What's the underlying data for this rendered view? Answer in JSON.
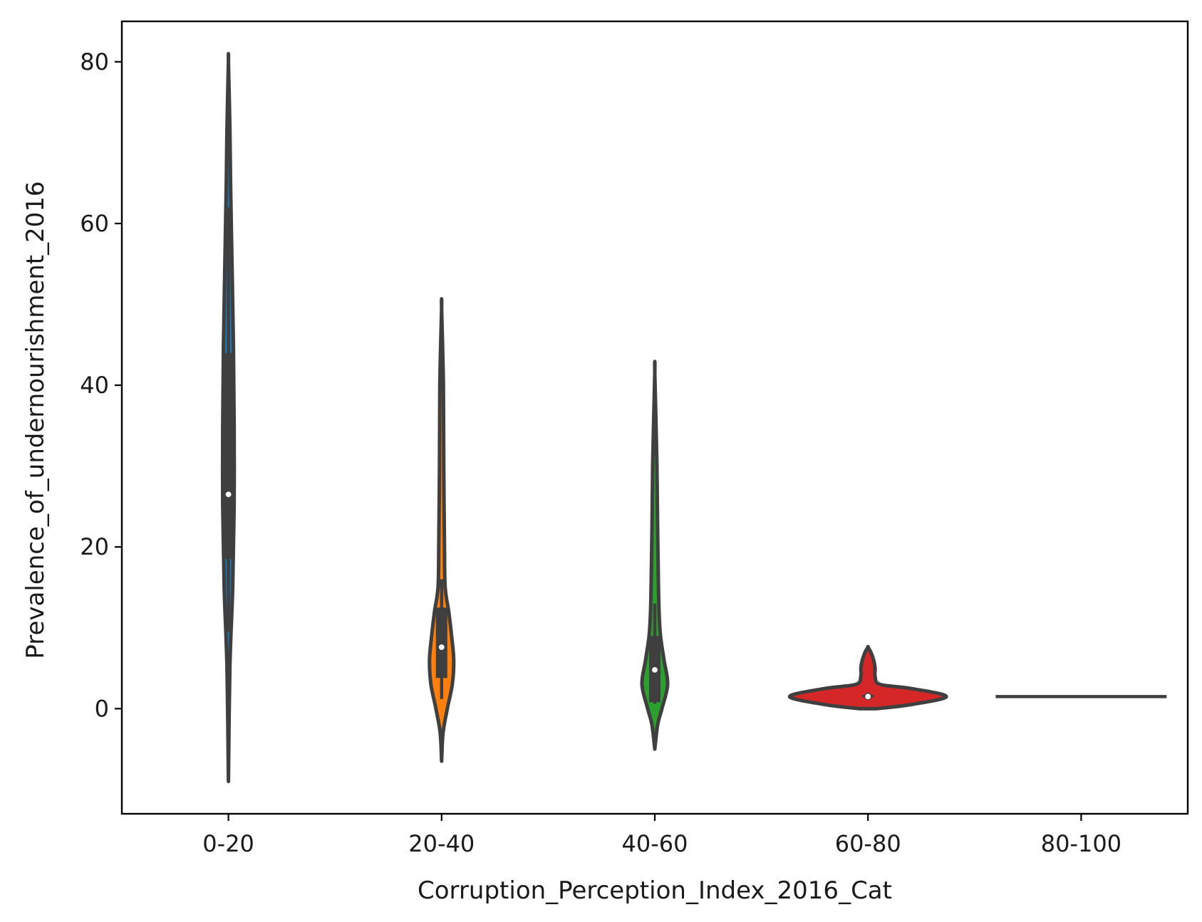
{
  "chart_data": {
    "type": "violin",
    "xlabel": "Corruption_Perception_Index_2016_Cat",
    "ylabel": "Prevalence_of_undernourishment_2016",
    "ylim": [
      -13,
      85
    ],
    "yticks": [
      0,
      20,
      40,
      60,
      80
    ],
    "grid": false,
    "legend": "none",
    "categories": [
      "0-20",
      "20-40",
      "40-60",
      "60-80",
      "80-100"
    ],
    "series": [
      {
        "category": "0-20",
        "color": "#1f77b4",
        "min": 9.5,
        "q1": 18.5,
        "median": 26.5,
        "q3": 44,
        "max": 62,
        "density": [
          [
            -9,
            0
          ],
          [
            5,
            2
          ],
          [
            15,
            6
          ],
          [
            25,
            8
          ],
          [
            35,
            8
          ],
          [
            45,
            7
          ],
          [
            55,
            5
          ],
          [
            65,
            3
          ],
          [
            72,
            2
          ],
          [
            80,
            0
          ]
        ]
      },
      {
        "category": "20-40",
        "color": "#ff7f0e",
        "min": 1.2,
        "q1": 3.8,
        "median": 7.6,
        "q3": 12.5,
        "max": 16,
        "density": [
          [
            -6.5,
            0
          ],
          [
            -3,
            2
          ],
          [
            0,
            8
          ],
          [
            3,
            15
          ],
          [
            6,
            17
          ],
          [
            9,
            14
          ],
          [
            12,
            10
          ],
          [
            15,
            5
          ],
          [
            20,
            4
          ],
          [
            30,
            3
          ],
          [
            40,
            2.5
          ],
          [
            49.5,
            0
          ]
        ]
      },
      {
        "category": "40-60",
        "color": "#2ca02c",
        "min": 0.6,
        "q1": 0.8,
        "median": 4.8,
        "q3": 9,
        "max": 13,
        "density": [
          [
            -5,
            0
          ],
          [
            -2,
            4
          ],
          [
            0,
            10
          ],
          [
            3,
            18
          ],
          [
            6,
            13
          ],
          [
            9,
            8
          ],
          [
            12,
            6
          ],
          [
            16,
            5
          ],
          [
            22,
            4
          ],
          [
            30,
            3
          ],
          [
            41.5,
            0
          ]
        ]
      },
      {
        "category": "60-80",
        "color": "#d62728",
        "min": 1.3,
        "q1": 1.4,
        "median": 1.5,
        "q3": 1.7,
        "max": 2,
        "density": [
          [
            0,
            12
          ],
          [
            0.5,
            60
          ],
          [
            1.5,
            110
          ],
          [
            2.5,
            60
          ],
          [
            3,
            17
          ],
          [
            4,
            10
          ],
          [
            5,
            10
          ],
          [
            6,
            8
          ],
          [
            7,
            4
          ],
          [
            7.6,
            0
          ]
        ]
      },
      {
        "category": "80-100",
        "color": "#9467bd",
        "min": 1.5,
        "q1": 1.5,
        "median": 1.5,
        "q3": 1.5,
        "max": 1.5,
        "density": [
          [
            1.5,
            120
          ]
        ]
      }
    ]
  }
}
